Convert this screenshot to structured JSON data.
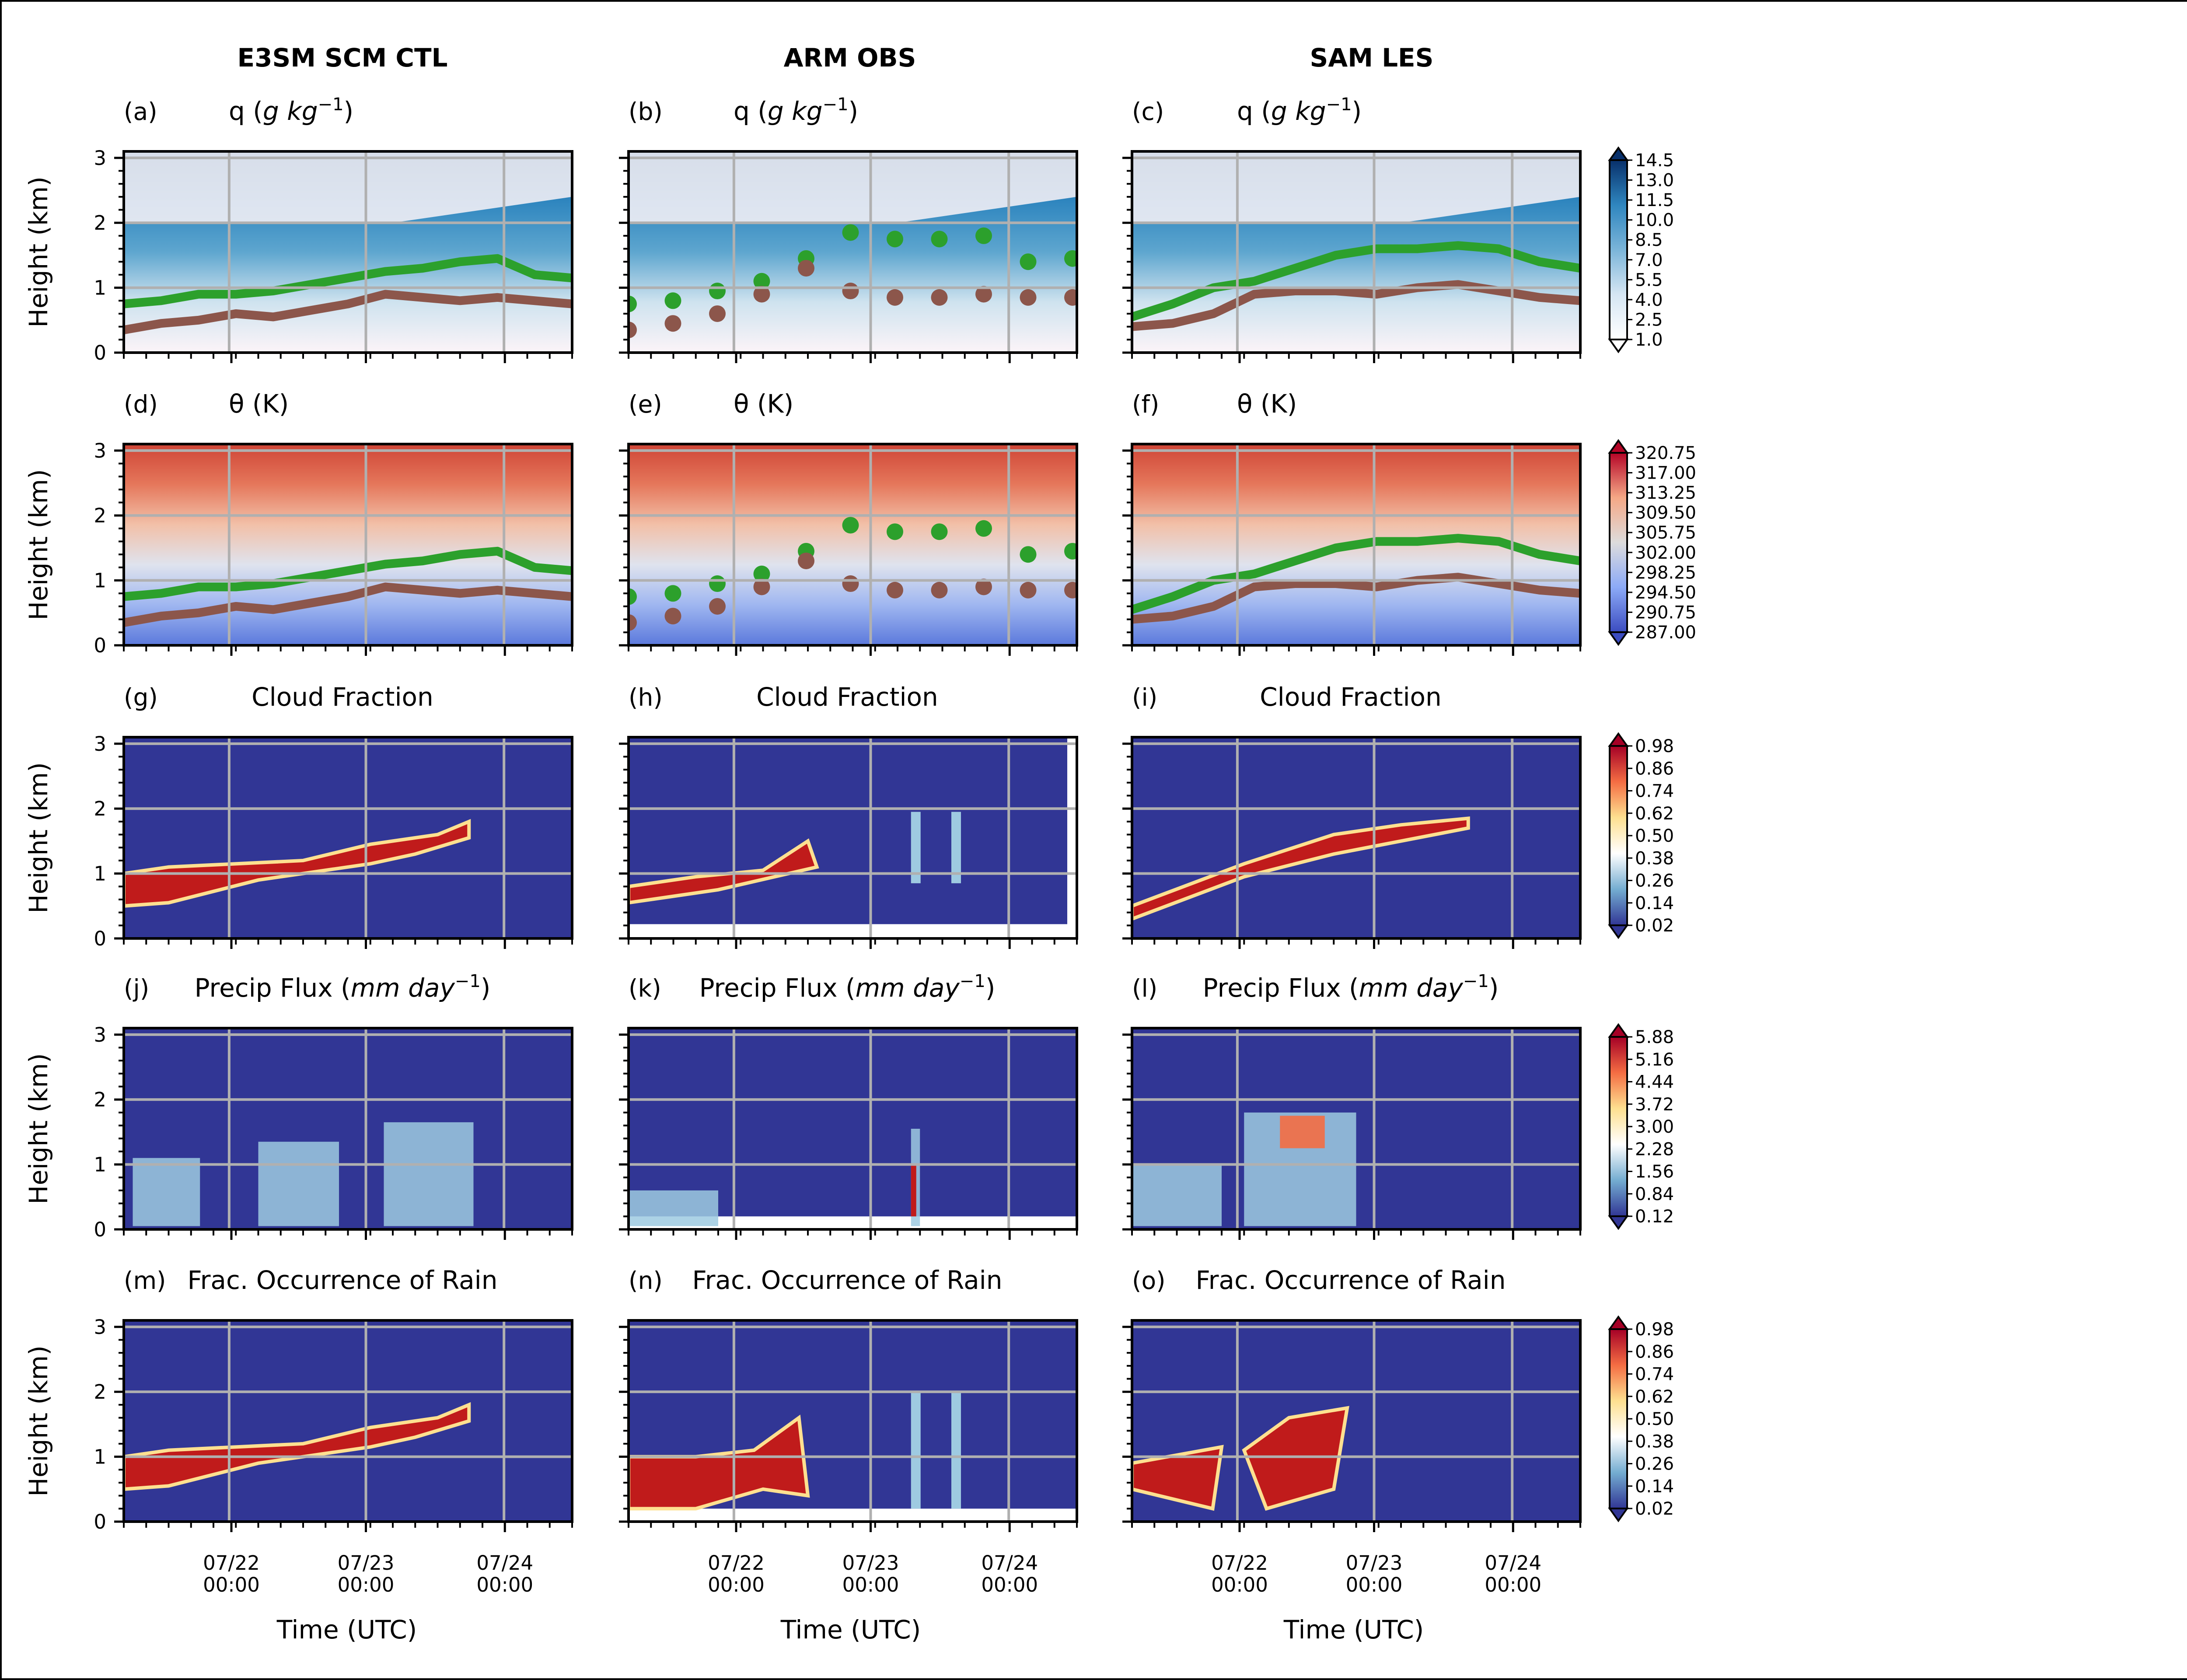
{
  "columns": [
    "E3SM SCM CTL",
    "ARM OBS",
    "SAM LES"
  ],
  "y_axis_label": "Height (km)",
  "x_axis_label": "Time (UTC)",
  "y_ticks": [
    "0",
    "1",
    "2",
    "3"
  ],
  "x_ticks": [
    "07/22\n00:00",
    "07/23\n00:00",
    "07/24\n00:00"
  ],
  "rows": [
    {
      "variable": "q",
      "title_plain": "q (",
      "title_italic": "g kg",
      "title_sup": "−1",
      "title_end": ")",
      "letters": [
        "(a)",
        "(b)",
        "(c)"
      ],
      "cmap": "Blues-like (white to dark blue)",
      "colorbar_ticks": [
        "14.5",
        "13.0",
        "11.5",
        "10.0",
        "8.5",
        "7.0",
        "5.5",
        "4.0",
        "2.5",
        "1.0"
      ],
      "colors": [
        "#fcf4f8",
        "#cfe3ef",
        "#5ea6cf",
        "#2f86bf",
        "#0b5d94"
      ]
    },
    {
      "variable": "theta",
      "title_plain": "θ (K)",
      "letters": [
        "(d)",
        "(e)",
        "(f)"
      ],
      "cmap": "coolwarm",
      "colorbar_ticks": [
        "320.75",
        "317.00",
        "313.25",
        "309.50",
        "305.75",
        "302.00",
        "298.25",
        "294.50",
        "290.75",
        "287.00"
      ],
      "colors": [
        "#e0e4ef",
        "#5b79dc",
        "#9fb6f0",
        "#f2c0a8",
        "#e5775b",
        "#cf4536"
      ]
    },
    {
      "variable": "cloud_fraction",
      "title_plain": "Cloud Fraction",
      "letters": [
        "(g)",
        "(h)",
        "(i)"
      ],
      "cmap": "RdYlBu_r",
      "colorbar_ticks": [
        "0.98",
        "0.86",
        "0.74",
        "0.62",
        "0.50",
        "0.38",
        "0.26",
        "0.14",
        "0.02"
      ],
      "colors": [
        "#313695",
        "#74add1",
        "#fee090",
        "#f46d43",
        "#c01b1b"
      ]
    },
    {
      "variable": "precip_flux",
      "title_plain": "Precip Flux (",
      "title_italic": "mm day",
      "title_sup": "−1",
      "title_end": ")",
      "letters": [
        "(j)",
        "(k)",
        "(l)"
      ],
      "cmap": "RdYlBu_r",
      "colorbar_ticks": [
        "5.88",
        "5.16",
        "4.44",
        "3.72",
        "3.00",
        "2.28",
        "1.56",
        "0.84",
        "0.12"
      ],
      "colors": [
        "#313695",
        "#74add1",
        "#fee090",
        "#f46d43",
        "#c01b1b"
      ]
    },
    {
      "variable": "frac_rain",
      "title_plain": "Frac. Occurrence of Rain",
      "letters": [
        "(m)",
        "(n)",
        "(o)"
      ],
      "cmap": "RdYlBu_r",
      "colorbar_ticks": [
        "0.98",
        "0.86",
        "0.74",
        "0.62",
        "0.50",
        "0.38",
        "0.26",
        "0.14",
        "0.02"
      ],
      "colors": [
        "#313695",
        "#74add1",
        "#fee090",
        "#f46d43",
        "#c01b1b"
      ]
    }
  ],
  "line_colors": {
    "upper": "#2ca02c",
    "lower": "#8c564b"
  },
  "chart_data": [
    {
      "type": "heatmap",
      "title": "q (g kg−1)",
      "xlabel": "Time (UTC)",
      "ylabel": "Height (km)",
      "ylim": [
        0,
        3
      ],
      "x_tick_labels": [
        "07/22 00:00",
        "07/23 00:00",
        "07/24 00:00"
      ],
      "colorbar_range": [
        1.0,
        14.5
      ],
      "grid": true,
      "panels": [
        "E3SM SCM CTL",
        "ARM OBS",
        "SAM LES"
      ],
      "overlay_lines_km": {
        "E3SM SCM CTL": {
          "upper": [
            0.75,
            0.8,
            0.9,
            0.9,
            0.95,
            1.05,
            1.15,
            1.25,
            1.3,
            1.4,
            1.45,
            1.2,
            1.15
          ],
          "lower": [
            0.35,
            0.45,
            0.5,
            0.6,
            0.55,
            0.65,
            0.75,
            0.9,
            0.85,
            0.8,
            0.85,
            0.8,
            0.75
          ]
        },
        "ARM OBS": {
          "upper": [
            0.75,
            0.8,
            0.95,
            1.1,
            1.45,
            1.85,
            1.75,
            1.75,
            1.8,
            1.4,
            1.45
          ],
          "lower": [
            0.35,
            0.45,
            0.6,
            0.9,
            1.3,
            0.95,
            0.85,
            0.85,
            0.9,
            0.85,
            0.85
          ]
        },
        "SAM LES": {
          "upper": [
            0.55,
            0.75,
            1.0,
            1.1,
            1.3,
            1.5,
            1.6,
            1.6,
            1.65,
            1.6,
            1.4,
            1.3
          ],
          "lower": [
            0.4,
            0.45,
            0.6,
            0.9,
            0.95,
            0.95,
            0.9,
            1.0,
            1.05,
            0.95,
            0.85,
            0.8
          ]
        }
      }
    },
    {
      "type": "heatmap",
      "title": "θ (K)",
      "xlabel": "Time (UTC)",
      "ylabel": "Height (km)",
      "ylim": [
        0,
        3
      ],
      "colorbar_range": [
        287.0,
        320.75
      ],
      "grid": true,
      "panels": [
        "E3SM SCM CTL",
        "ARM OBS",
        "SAM LES"
      ]
    },
    {
      "type": "heatmap",
      "title": "Cloud Fraction",
      "xlabel": "Time (UTC)",
      "ylabel": "Height (km)",
      "ylim": [
        0,
        3
      ],
      "colorbar_range": [
        0.02,
        0.98
      ],
      "grid": true,
      "panels": [
        "E3SM SCM CTL",
        "ARM OBS",
        "SAM LES"
      ]
    },
    {
      "type": "heatmap",
      "title": "Precip Flux (mm day−1)",
      "xlabel": "Time (UTC)",
      "ylabel": "Height (km)",
      "ylim": [
        0,
        3
      ],
      "colorbar_range": [
        0.12,
        5.88
      ],
      "grid": true,
      "panels": [
        "E3SM SCM CTL",
        "ARM OBS",
        "SAM LES"
      ]
    },
    {
      "type": "heatmap",
      "title": "Frac. Occurrence of Rain",
      "xlabel": "Time (UTC)",
      "ylabel": "Height (km)",
      "ylim": [
        0,
        3
      ],
      "colorbar_range": [
        0.02,
        0.98
      ],
      "grid": true,
      "panels": [
        "E3SM SCM CTL",
        "ARM OBS",
        "SAM LES"
      ]
    }
  ]
}
